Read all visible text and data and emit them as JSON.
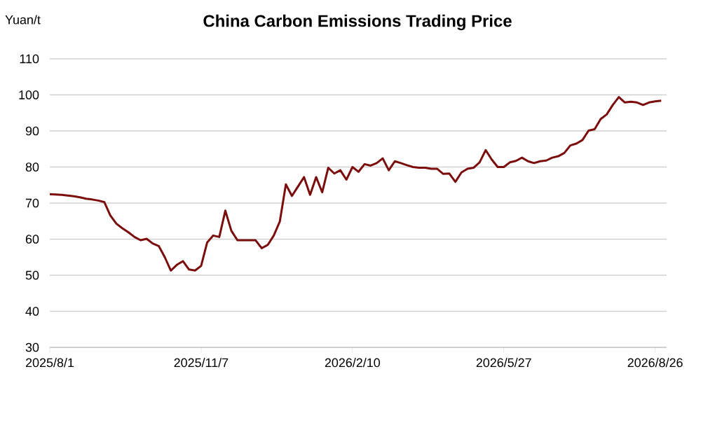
{
  "chart_data": {
    "type": "line",
    "title": "China Carbon Emissions Trading Price",
    "ylabel": "Yuan/t",
    "categories": [
      "2025/8/1",
      null,
      null,
      null,
      null,
      null,
      null,
      null,
      null,
      null,
      null,
      null,
      null,
      null,
      null,
      null,
      null,
      null,
      null,
      null,
      null,
      null,
      null,
      null,
      null,
      "2025/11/7",
      null,
      null,
      null,
      null,
      null,
      null,
      null,
      null,
      null,
      null,
      null,
      null,
      null,
      null,
      null,
      null,
      null,
      null,
      null,
      null,
      null,
      null,
      null,
      null,
      "2026/2/10",
      null,
      null,
      null,
      null,
      null,
      null,
      null,
      null,
      null,
      null,
      null,
      null,
      null,
      null,
      null,
      null,
      null,
      null,
      null,
      null,
      null,
      null,
      null,
      null,
      "2026/5/27",
      null,
      null,
      null,
      null,
      null,
      null,
      null,
      null,
      null,
      null,
      null,
      null,
      null,
      null,
      null,
      null,
      null,
      null,
      null,
      null,
      null,
      null,
      null,
      null,
      "2026/8/26",
      null
    ],
    "series": [
      {
        "color": "#7b0d0d",
        "values": [
          72.5,
          72.4,
          72.3,
          72.1,
          71.9,
          71.6,
          71.2,
          71.0,
          70.7,
          70.3,
          66.6,
          64.3,
          63.0,
          61.9,
          60.6,
          59.7,
          60.1,
          58.8,
          58.1,
          55.0,
          51.3,
          52.9,
          53.9,
          51.6,
          51.3,
          52.6,
          59.1,
          61.0,
          60.6,
          67.9,
          62.3,
          59.7,
          59.7,
          59.7,
          59.7,
          57.5,
          58.4,
          61.0,
          64.9,
          75.2,
          72.0,
          74.6,
          77.2,
          72.3,
          77.2,
          73.0,
          79.8,
          78.2,
          79.1,
          76.5,
          80.0,
          78.7,
          80.8,
          80.4,
          81.1,
          82.4,
          79.1,
          81.6,
          81.1,
          80.5,
          80.0,
          79.8,
          79.8,
          79.5,
          79.5,
          78.1,
          78.2,
          75.9,
          78.5,
          79.5,
          79.8,
          81.3,
          84.7,
          82.1,
          80.0,
          80.0,
          81.3,
          81.7,
          82.6,
          81.6,
          81.1,
          81.6,
          81.8,
          82.6,
          83.0,
          83.9,
          86.0,
          86.5,
          87.5,
          90.1,
          90.5,
          93.3,
          94.6,
          97.2,
          99.4,
          97.9,
          98.1,
          97.9,
          97.2,
          97.9,
          98.2,
          98.4
        ]
      }
    ],
    "ylim": [
      30,
      110
    ],
    "yticks": [
      30,
      40,
      50,
      60,
      70,
      80,
      90,
      100,
      110
    ],
    "grid": "y"
  }
}
